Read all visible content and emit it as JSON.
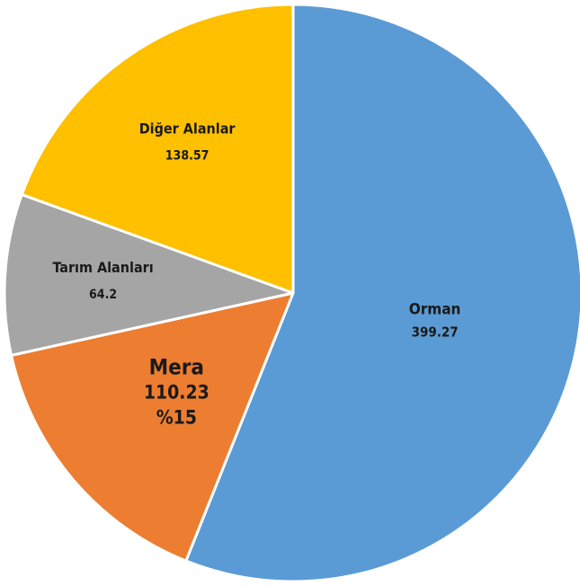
{
  "chart_data": {
    "type": "pie",
    "slices": [
      {
        "label": "Orman",
        "value": 399.27,
        "color": "#5b9bd5"
      },
      {
        "label": "Mera",
        "value": 110.23,
        "percent": "%15",
        "color": "#ed7d31"
      },
      {
        "label": "Tarım Alanları",
        "value": 64.2,
        "color": "#a5a5a5"
      },
      {
        "label": "Diğer Alanlar",
        "value": 138.57,
        "color": "#ffc000"
      }
    ],
    "start_direction": "top",
    "direction": "clockwise",
    "legend": "none"
  }
}
